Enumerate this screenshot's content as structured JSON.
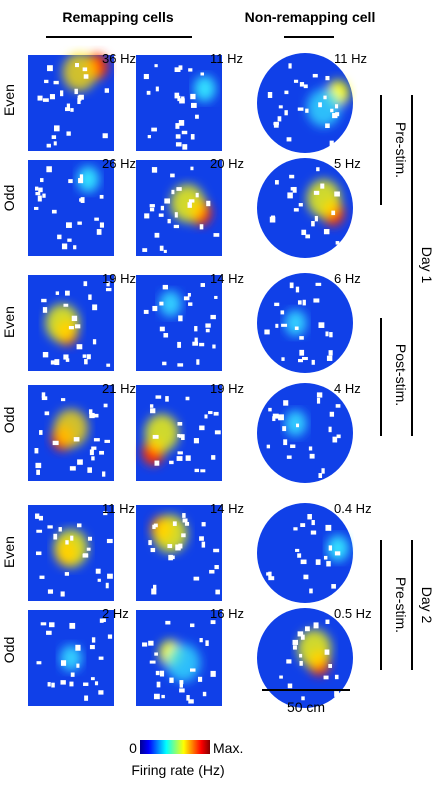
{
  "headers": {
    "remapping": "Remapping cells",
    "non_remapping": "Non-remapping cell"
  },
  "row_labels": [
    "Even",
    "Odd",
    "Even",
    "Odd",
    "Even",
    "Odd"
  ],
  "peak_rates": [
    [
      "36 Hz",
      "11 Hz",
      "11 Hz"
    ],
    [
      "26 Hz",
      "20 Hz",
      "5 Hz"
    ],
    [
      "19 Hz",
      "14 Hz",
      "6 Hz"
    ],
    [
      "21 Hz",
      "19 Hz",
      "4 Hz"
    ],
    [
      "11 Hz",
      "14 Hz",
      "0.4 Hz"
    ],
    [
      "2 Hz",
      "16 Hz",
      "0.5 Hz"
    ]
  ],
  "session_labels": {
    "day1_pre": "Pre-stim.",
    "day1_post": "Post-stim.",
    "day2_pre": "Pre-stim."
  },
  "day_labels": {
    "day1": "Day 1",
    "day2": "Day 2"
  },
  "scale_bar": "50 cm",
  "colorbar": {
    "min": "0",
    "max": "Max.",
    "label": "Firing rate (Hz)"
  }
}
